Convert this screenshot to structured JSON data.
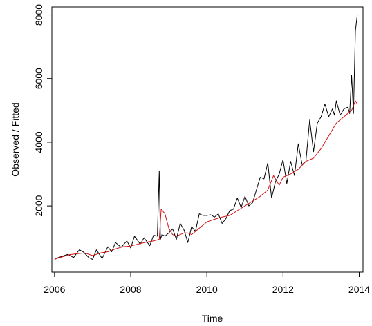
{
  "chart_data": {
    "type": "line",
    "title": "",
    "xlabel": "Time",
    "ylabel": "Observed / Fitted",
    "xlim": [
      2005.93,
      2014.1
    ],
    "ylim": [
      -80,
      8250
    ],
    "xticks": [
      2006,
      2008,
      2010,
      2012,
      2014
    ],
    "xtick_labels": [
      "2006",
      "2008",
      "2010",
      "2012",
      "2014"
    ],
    "yticks": [
      2000,
      4000,
      6000,
      8000
    ],
    "ytick_labels": [
      "2000",
      "4000",
      "6000",
      "8000"
    ],
    "grid": false,
    "legend": "none",
    "series": [
      {
        "color": "#000000",
        "x": [
          2006.0,
          2006.1,
          2006.2,
          2006.35,
          2006.5,
          2006.65,
          2006.75,
          2006.9,
          2007.0,
          2007.1,
          2007.25,
          2007.4,
          2007.5,
          2007.6,
          2007.75,
          2007.9,
          2008.0,
          2008.1,
          2008.25,
          2008.35,
          2008.5,
          2008.6,
          2008.7,
          2008.75,
          2008.78,
          2008.82,
          2008.9,
          2009.0,
          2009.1,
          2009.2,
          2009.3,
          2009.4,
          2009.5,
          2009.6,
          2009.7,
          2009.8,
          2009.9,
          2010.0,
          2010.1,
          2010.2,
          2010.3,
          2010.4,
          2010.5,
          2010.6,
          2010.7,
          2010.8,
          2010.9,
          2011.0,
          2011.1,
          2011.2,
          2011.3,
          2011.4,
          2011.5,
          2011.6,
          2011.7,
          2011.8,
          2011.9,
          2012.0,
          2012.1,
          2012.2,
          2012.3,
          2012.4,
          2012.5,
          2012.6,
          2012.7,
          2012.8,
          2012.9,
          2013.0,
          2013.1,
          2013.2,
          2013.3,
          2013.35,
          2013.4,
          2013.5,
          2013.6,
          2013.7,
          2013.75,
          2013.8,
          2013.85,
          2013.9,
          2013.95
        ],
        "values": [
          320,
          380,
          420,
          480,
          380,
          620,
          560,
          380,
          320,
          620,
          350,
          720,
          560,
          850,
          700,
          900,
          680,
          1050,
          800,
          1000,
          750,
          1080,
          1050,
          3100,
          950,
          1100,
          1050,
          1150,
          1280,
          950,
          1450,
          1250,
          850,
          1350,
          1200,
          1750,
          1700,
          1700,
          1720,
          1650,
          1750,
          1450,
          1600,
          1850,
          1900,
          2250,
          1950,
          2300,
          2000,
          2100,
          2500,
          2900,
          2850,
          3350,
          2250,
          2750,
          3000,
          3450,
          2700,
          3400,
          2950,
          3950,
          3300,
          3400,
          4700,
          3700,
          4600,
          4800,
          5200,
          4800,
          5050,
          4850,
          5300,
          4850,
          5050,
          5100,
          4900,
          6100,
          4900,
          7500,
          8000
        ]
      },
      {
        "color": "#d01010",
        "x": [
          2006.0,
          2006.2,
          2006.4,
          2006.6,
          2006.8,
          2007.0,
          2007.2,
          2007.4,
          2007.6,
          2007.8,
          2008.0,
          2008.2,
          2008.4,
          2008.6,
          2008.75,
          2008.8,
          2008.9,
          2009.0,
          2009.1,
          2009.2,
          2009.3,
          2009.4,
          2009.5,
          2009.6,
          2009.8,
          2010.0,
          2010.2,
          2010.4,
          2010.6,
          2010.8,
          2011.0,
          2011.2,
          2011.4,
          2011.6,
          2011.75,
          2011.9,
          2012.0,
          2012.2,
          2012.4,
          2012.6,
          2012.8,
          2013.0,
          2013.2,
          2013.4,
          2013.6,
          2013.8,
          2013.9,
          2013.95
        ],
        "values": [
          330,
          400,
          470,
          500,
          520,
          440,
          520,
          560,
          650,
          720,
          740,
          800,
          860,
          900,
          950,
          1900,
          1750,
          1300,
          1100,
          1050,
          1100,
          1150,
          1150,
          1100,
          1300,
          1500,
          1580,
          1650,
          1700,
          1850,
          2000,
          2150,
          2300,
          2500,
          2950,
          2650,
          2900,
          3000,
          3150,
          3400,
          3500,
          3800,
          4200,
          4600,
          4800,
          5000,
          5300,
          5200
        ]
      }
    ]
  }
}
